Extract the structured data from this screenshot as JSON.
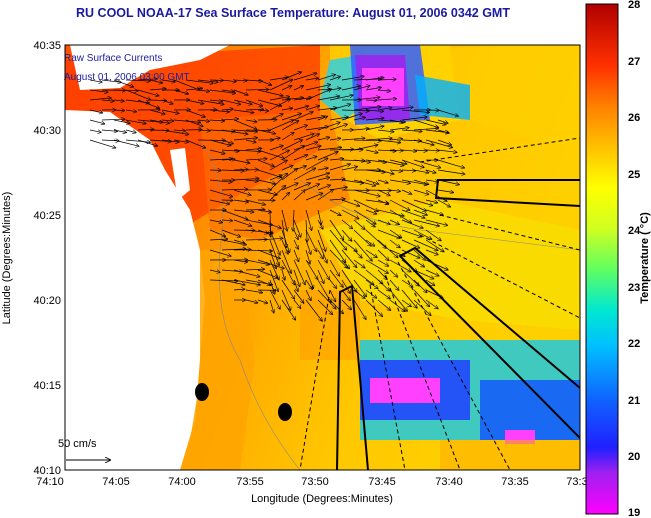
{
  "title": "RU COOL  NOAA-17  Sea Surface Temperature:  August 01, 2006 0342 GMT",
  "inset": {
    "line1": "Raw Surface Currents",
    "line2": "August 01, 2006 03:00 GMT"
  },
  "scale_label": "50 cm/s",
  "axes": {
    "xlabel": "Longitude (Degrees:Minutes)",
    "ylabel": "Latitude (Degrees:Minutes)",
    "xticks": [
      "74:10",
      "74:05",
      "74:00",
      "73:55",
      "73:50",
      "73:45",
      "73:40",
      "73:35",
      "73:3"
    ],
    "yticks": [
      "40:35",
      "40:30",
      "40:25",
      "40:20",
      "40:15",
      "40:10"
    ]
  },
  "colorbar": {
    "label": "Temperature ( °C)",
    "ticks": [
      "28",
      "27",
      "26",
      "25",
      "24",
      "23",
      "22",
      "21",
      "20",
      "19"
    ],
    "min": 19,
    "max": 28
  },
  "colors": {
    "land": "#ffffff",
    "title": "#1a1aa0",
    "arrows": "#000000"
  }
}
